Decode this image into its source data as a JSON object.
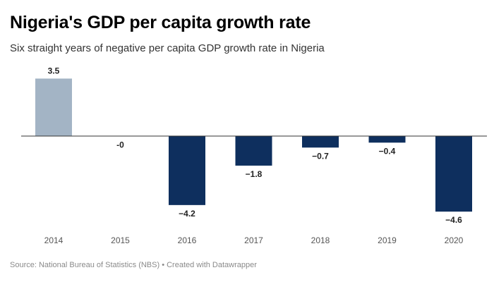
{
  "chart_data": {
    "type": "bar",
    "title": "Nigeria's GDP per capita growth rate",
    "subtitle": "Six straight years of negative per capita GDP growth rate in Nigeria",
    "categories": [
      "2014",
      "2015",
      "2016",
      "2017",
      "2018",
      "2019",
      "2020"
    ],
    "values": [
      3.5,
      -0.02,
      -4.2,
      -1.8,
      -0.7,
      -0.4,
      -4.6
    ],
    "value_labels": [
      "3.5",
      "-0",
      "−4.2",
      "−1.8",
      "−0.7",
      "−0.4",
      "−4.6"
    ],
    "colors": [
      "#a3b4c5",
      "#0e2f5e",
      "#0e2f5e",
      "#0e2f5e",
      "#0e2f5e",
      "#0e2f5e",
      "#0e2f5e"
    ],
    "xlabel": "",
    "ylabel": "",
    "ylim": [
      -5.5,
      4.5
    ],
    "grid": false,
    "source": "Source: National Bureau of Statistics (NBS) • Created with Datawrapper"
  }
}
